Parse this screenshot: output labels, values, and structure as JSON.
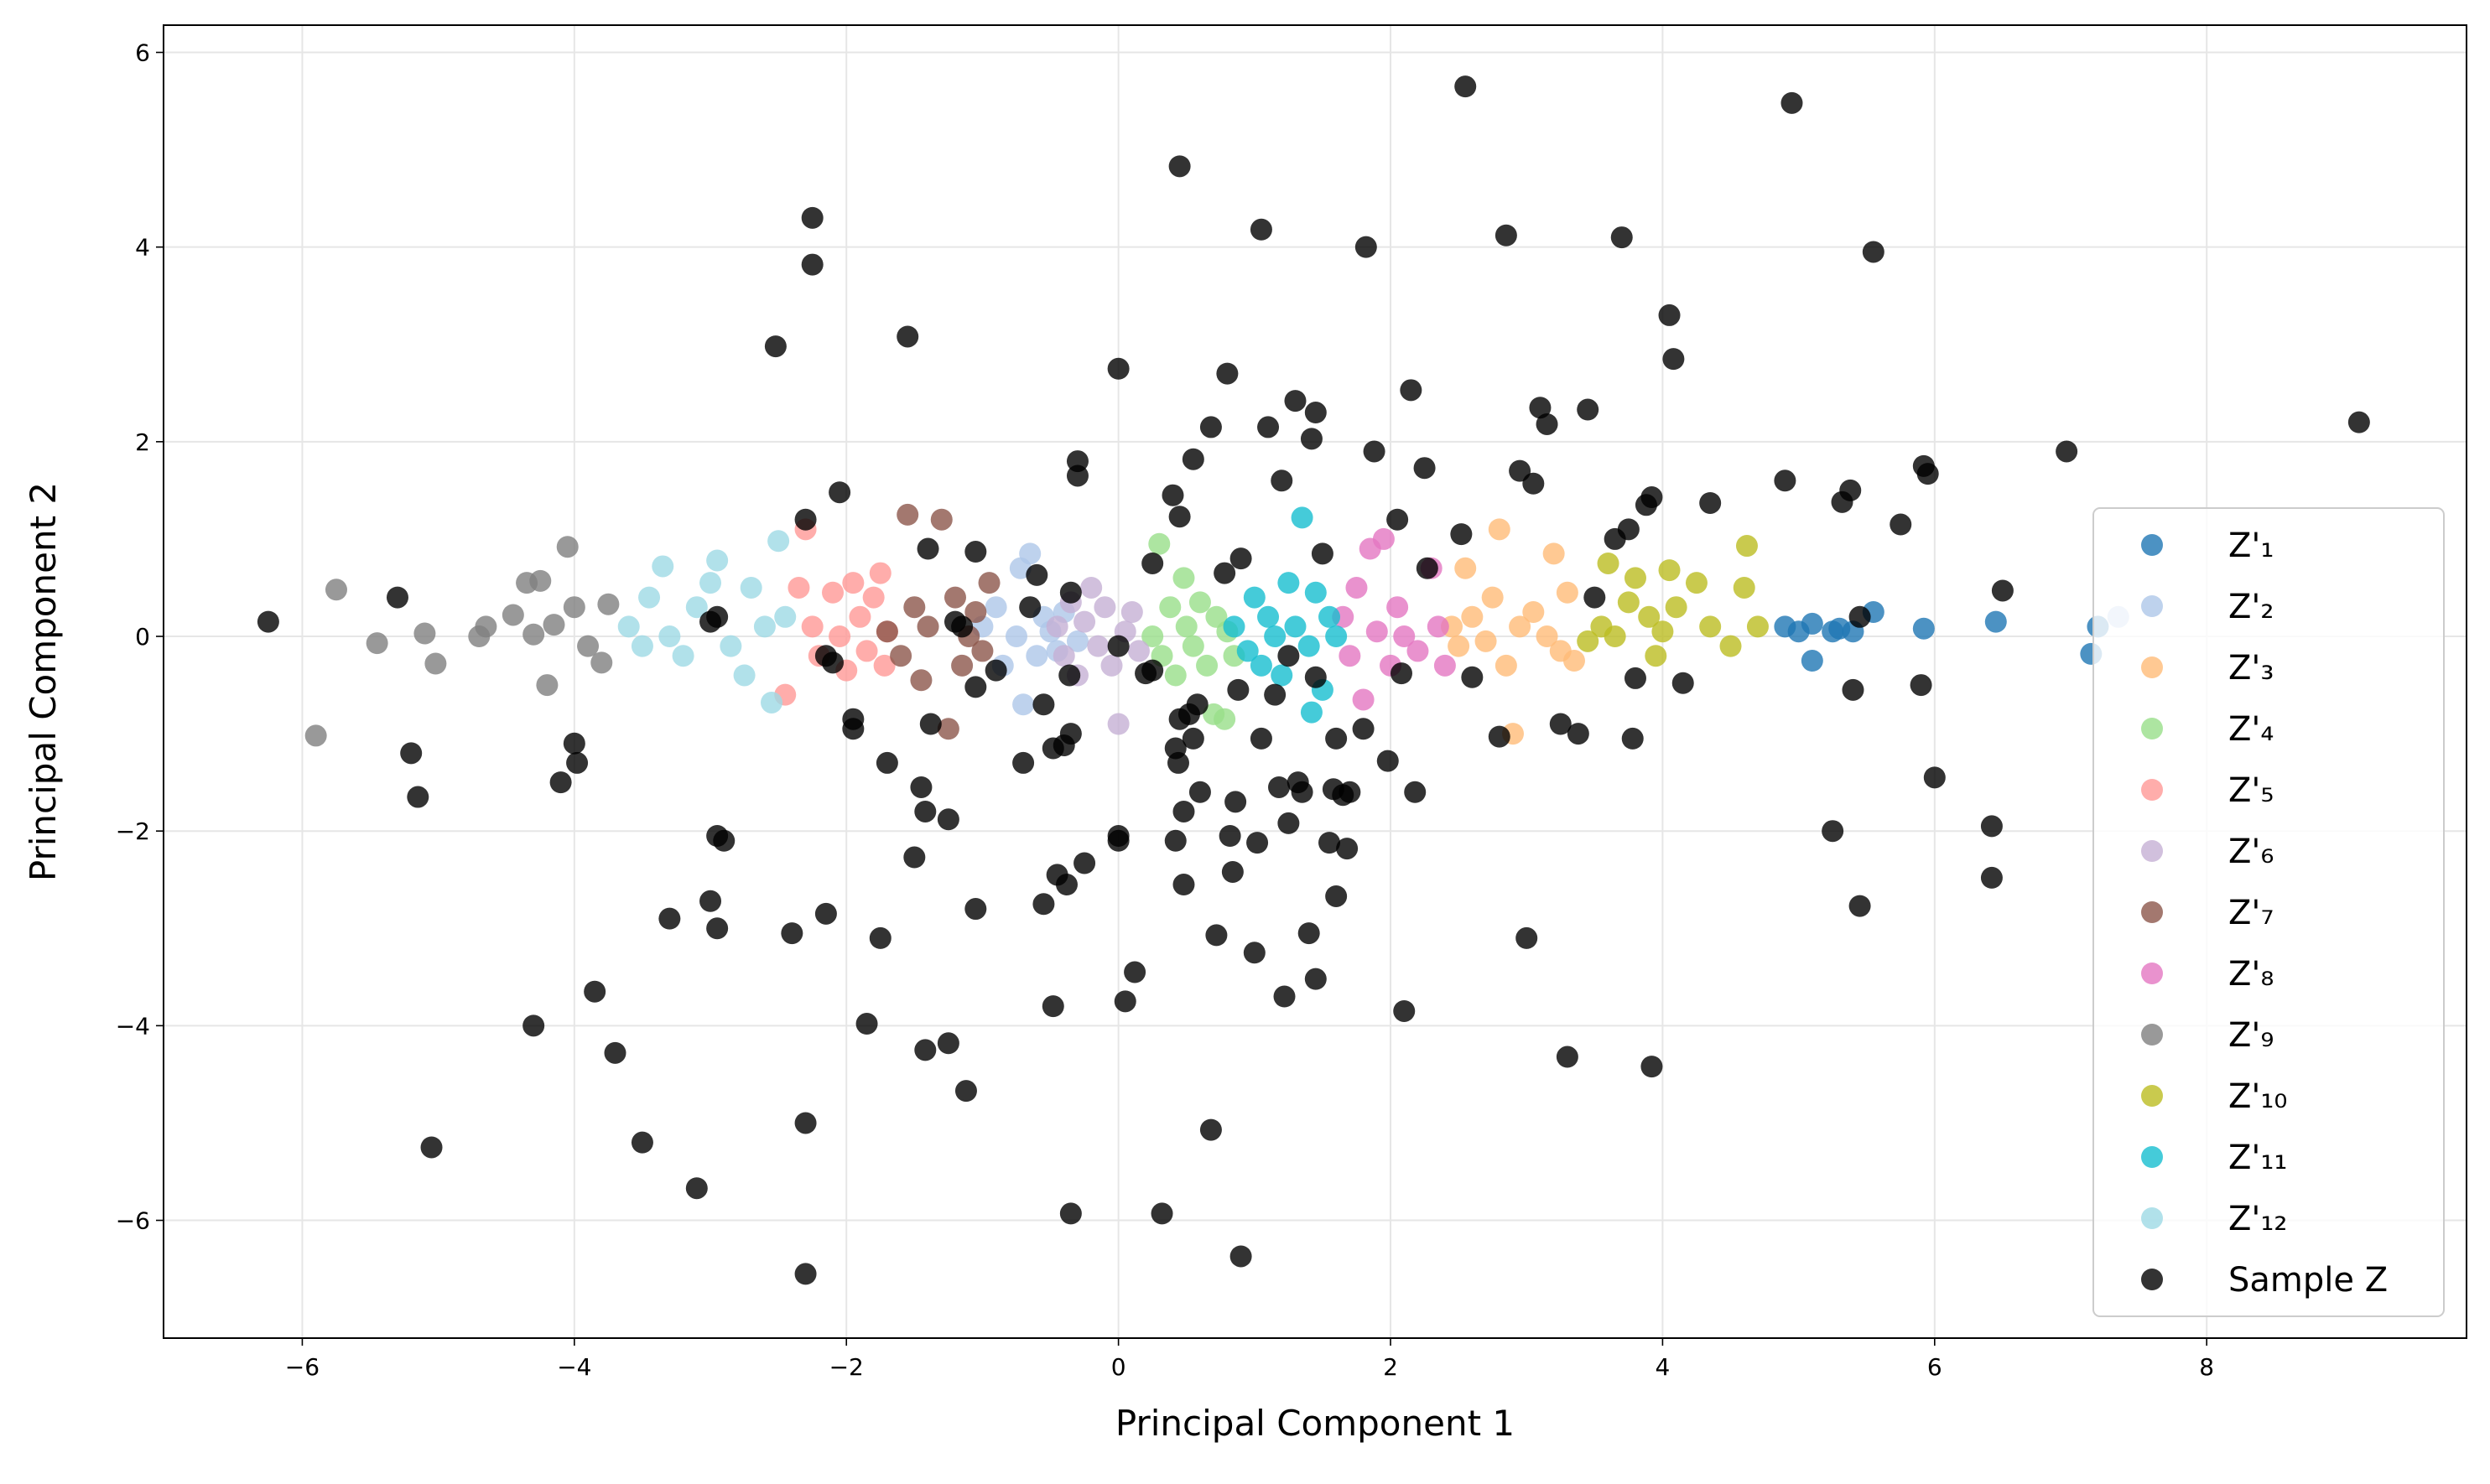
{
  "chart_data": {
    "type": "scatter",
    "xlabel": "Principal Component 1",
    "ylabel": "Principal Component 2",
    "xlim": [
      -7.02,
      9.91
    ],
    "ylim": [
      -7.21,
      6.28
    ],
    "xticks": [
      {
        "value": -6,
        "label": "−6"
      },
      {
        "value": -4,
        "label": "−4"
      },
      {
        "value": -2,
        "label": "−2"
      },
      0,
      2,
      4,
      6,
      8
    ],
    "yticks": [
      {
        "value": -6,
        "label": "−6"
      },
      {
        "value": -4,
        "label": "−4"
      },
      {
        "value": -2,
        "label": "−2"
      },
      0,
      2,
      4,
      6
    ],
    "grid": true,
    "legend": "lower right",
    "series": [
      {
        "name": "Z'₁",
        "color": "#1f77b4",
        "x": [
          4.9,
          5.0,
          5.1,
          5.1,
          5.25,
          5.3,
          5.4,
          5.55,
          5.92,
          6.45,
          7.15,
          7.2
        ],
        "values": [
          0.1,
          0.05,
          0.13,
          -0.25,
          0.05,
          0.08,
          0.05,
          0.25,
          0.08,
          0.15,
          -0.18,
          0.1
        ]
      },
      {
        "name": "Z'₂",
        "color": "#aec7e8",
        "x": [
          -1.0,
          -0.9,
          -0.85,
          -0.75,
          -0.72,
          -0.7,
          -0.65,
          -0.6,
          -0.55,
          -0.5,
          -0.45,
          -0.4,
          -0.3,
          7.35
        ],
        "values": [
          0.1,
          0.3,
          -0.3,
          0.0,
          0.7,
          -0.7,
          0.85,
          -0.2,
          0.2,
          0.05,
          -0.15,
          0.25,
          -0.05,
          0.2
        ]
      },
      {
        "name": "Z'₃",
        "color": "#ffbb78",
        "x": [
          2.45,
          2.5,
          2.55,
          2.6,
          2.7,
          2.75,
          2.8,
          2.85,
          2.9,
          2.95,
          3.05,
          3.15,
          3.2,
          3.25,
          3.3,
          3.35
        ],
        "values": [
          0.1,
          -0.1,
          0.7,
          0.2,
          -0.05,
          0.4,
          1.1,
          -0.3,
          -1.0,
          0.1,
          0.25,
          0.0,
          0.85,
          -0.15,
          0.45,
          -0.25
        ]
      },
      {
        "name": "Z'₄",
        "color": "#98df8a",
        "x": [
          0.25,
          0.3,
          0.32,
          0.38,
          0.42,
          0.48,
          0.5,
          0.55,
          0.6,
          0.65,
          0.7,
          0.72,
          0.78,
          0.8,
          0.85
        ],
        "values": [
          0.0,
          0.95,
          -0.2,
          0.3,
          -0.4,
          0.6,
          0.1,
          -0.1,
          0.35,
          -0.3,
          -0.8,
          0.2,
          -0.85,
          0.05,
          -0.2
        ]
      },
      {
        "name": "Z'₅",
        "color": "#ff9896",
        "x": [
          -2.45,
          -2.35,
          -2.3,
          -2.25,
          -2.2,
          -2.1,
          -2.05,
          -2.0,
          -1.95,
          -1.9,
          -1.85,
          -1.8,
          -1.75,
          -1.72,
          -1.7
        ],
        "values": [
          -0.6,
          0.5,
          1.1,
          0.1,
          -0.2,
          0.45,
          0.0,
          -0.35,
          0.55,
          0.2,
          -0.15,
          0.4,
          0.65,
          -0.3,
          0.05
        ]
      },
      {
        "name": "Z'₆",
        "color": "#c5b0d5",
        "x": [
          -0.45,
          -0.4,
          -0.35,
          -0.3,
          -0.25,
          -0.2,
          -0.15,
          -0.1,
          -0.05,
          0,
          0.05,
          0.1,
          0.15
        ],
        "values": [
          0.1,
          -0.2,
          0.35,
          -0.4,
          0.15,
          0.5,
          -0.1,
          0.3,
          -0.3,
          -0.9,
          0.05,
          0.25,
          -0.15
        ]
      },
      {
        "name": "Z'₇",
        "color": "#8c564b",
        "x": [
          -1.7,
          -1.6,
          -1.55,
          -1.5,
          -1.45,
          -1.4,
          -1.3,
          -1.25,
          -1.2,
          -1.15,
          -1.1,
          -1.05,
          -1.0,
          -0.95
        ],
        "values": [
          0.05,
          -0.2,
          1.25,
          0.3,
          -0.45,
          0.1,
          1.2,
          -0.95,
          0.4,
          -0.3,
          0.0,
          0.25,
          -0.15,
          0.55
        ]
      },
      {
        "name": "Z'₈",
        "color": "#e377c2",
        "x": [
          1.65,
          1.7,
          1.75,
          1.8,
          1.85,
          1.9,
          1.95,
          2.0,
          2.05,
          2.1,
          2.2,
          2.3,
          2.35,
          2.4
        ],
        "values": [
          0.2,
          -0.2,
          0.5,
          -0.65,
          0.9,
          0.05,
          1.0,
          -0.3,
          0.3,
          0.0,
          -0.15,
          0.7,
          0.1,
          -0.3
        ]
      },
      {
        "name": "Z'₉",
        "color": "#7f7f7f",
        "x": [
          -5.9,
          -5.75,
          -5.45,
          -5.1,
          -5.02,
          -4.7,
          -4.65,
          -4.45,
          -4.35,
          -4.3,
          -4.25,
          -4.2,
          -4.15,
          -4.05,
          -4.0,
          -3.9,
          -3.8,
          -3.75
        ],
        "values": [
          -1.02,
          0.48,
          -0.07,
          0.03,
          -0.28,
          0.0,
          0.1,
          0.22,
          0.55,
          0.02,
          0.57,
          -0.5,
          0.12,
          0.92,
          0.3,
          -0.1,
          -0.27,
          0.33
        ]
      },
      {
        "name": "Z'₁₀",
        "color": "#bcbd22",
        "x": [
          3.45,
          3.55,
          3.6,
          3.65,
          3.75,
          3.8,
          3.9,
          3.95,
          4.0,
          4.05,
          4.1,
          4.25,
          4.35,
          4.5,
          4.6,
          4.62,
          4.7
        ],
        "values": [
          -0.05,
          0.1,
          0.75,
          0.0,
          0.35,
          0.6,
          0.2,
          -0.2,
          0.05,
          0.68,
          0.3,
          0.55,
          0.1,
          -0.1,
          0.5,
          0.93,
          0.1
        ]
      },
      {
        "name": "Z'₁₁",
        "color": "#17becf",
        "x": [
          0.85,
          0.95,
          1.0,
          1.05,
          1.1,
          1.15,
          1.2,
          1.25,
          1.3,
          1.35,
          1.4,
          1.42,
          1.45,
          1.5,
          1.55,
          1.6
        ],
        "values": [
          0.1,
          -0.15,
          0.4,
          -0.3,
          0.2,
          0.0,
          -0.4,
          0.55,
          0.1,
          1.22,
          -0.1,
          -0.78,
          0.45,
          -0.55,
          0.2,
          0.0
        ]
      },
      {
        "name": "Z'₁₂",
        "color": "#9edae5",
        "x": [
          -3.6,
          -3.5,
          -3.45,
          -3.35,
          -3.3,
          -3.2,
          -3.1,
          -3.0,
          -2.95,
          -2.85,
          -2.75,
          -2.7,
          -2.6,
          -2.55,
          -2.5,
          -2.45
        ],
        "values": [
          0.1,
          -0.1,
          0.4,
          0.72,
          0.0,
          -0.2,
          0.3,
          0.55,
          0.78,
          -0.1,
          -0.4,
          0.5,
          0.1,
          -0.68,
          0.98,
          0.2
        ]
      },
      {
        "name": "Sample Z",
        "color": "#000000",
        "x": [
          -6.25,
          -5.3,
          -5.2,
          -5.15,
          -5.05,
          -4.3,
          -4.1,
          -4.0,
          -3.98,
          -3.85,
          -3.7,
          -3.5,
          -3.3,
          -3.1,
          -3.0,
          -2.95,
          -2.95,
          -2.9,
          -3.0,
          -2.95,
          -2.52,
          -2.4,
          -2.3,
          -2.3,
          -2.3,
          -2.25,
          -2.25,
          -2.15,
          -2.15,
          -2.1,
          -2.05,
          -1.95,
          -1.95,
          -1.85,
          -1.75,
          -1.7,
          -1.55,
          -1.5,
          -1.45,
          -1.42,
          -1.42,
          -1.4,
          -1.38,
          -1.25,
          -1.25,
          -1.2,
          -1.15,
          -1.12,
          -1.05,
          -1.05,
          -1.05,
          -0.9,
          -0.7,
          -0.65,
          -0.6,
          -0.55,
          -0.55,
          -0.48,
          -0.48,
          -0.45,
          -0.4,
          -0.38,
          -0.36,
          -0.35,
          -0.35,
          -0.35,
          -0.3,
          -0.3,
          -0.25,
          0,
          0,
          0,
          0,
          0.05,
          0.12,
          0.2,
          0.25,
          0.25,
          0.32,
          0.4,
          0.42,
          0.42,
          0.44,
          0.45,
          0.45,
          0.45,
          0.48,
          0.48,
          0.52,
          0.55,
          0.55,
          0.58,
          0.6,
          0.68,
          0.68,
          0.72,
          0.78,
          0.8,
          0.82,
          0.84,
          0.86,
          0.88,
          0.9,
          0.9,
          1.0,
          1.02,
          1.05,
          1.05,
          1.1,
          1.15,
          1.18,
          1.2,
          1.22,
          1.25,
          1.25,
          1.3,
          1.32,
          1.35,
          1.4,
          1.42,
          1.45,
          1.45,
          1.45,
          1.5,
          1.55,
          1.58,
          1.6,
          1.6,
          1.65,
          1.68,
          1.7,
          1.8,
          1.82,
          1.88,
          1.98,
          2.05,
          2.08,
          2.1,
          2.15,
          2.18,
          2.25,
          2.27,
          2.52,
          2.55,
          2.6,
          2.8,
          2.85,
          2.95,
          3.0,
          3.05,
          3.1,
          3.15,
          3.25,
          3.3,
          3.38,
          3.45,
          3.5,
          3.65,
          3.7,
          3.75,
          3.78,
          3.8,
          3.88,
          3.92,
          3.92,
          4.05,
          4.08,
          4.15,
          4.35,
          4.9,
          4.95,
          5.32,
          5.38,
          5.25,
          5.4,
          5.45,
          5.45,
          5.55,
          5.75,
          5.9,
          5.92,
          5.95,
          6.0,
          6.42,
          6.42,
          6.5,
          6.97,
          9.12
        ],
        "values": [
          0.15,
          0.4,
          -1.2,
          -1.65,
          -5.25,
          -4.0,
          -1.5,
          -1.1,
          -1.3,
          -3.65,
          -4.28,
          -5.2,
          -2.9,
          -5.67,
          -2.72,
          -3.0,
          -2.05,
          -2.1,
          0.15,
          0.2,
          2.98,
          -3.05,
          1.2,
          -5.0,
          -6.55,
          4.3,
          3.82,
          -2.85,
          -0.2,
          -0.27,
          1.48,
          -0.85,
          -0.95,
          -3.98,
          -3.1,
          -1.3,
          3.08,
          -2.27,
          -1.55,
          -1.8,
          -4.25,
          0.9,
          -0.9,
          -1.88,
          -4.18,
          0.15,
          0.1,
          -4.67,
          0.87,
          -2.8,
          -0.52,
          -0.35,
          -1.3,
          0.3,
          0.63,
          -0.7,
          -2.75,
          -3.8,
          -1.15,
          -2.45,
          -1.12,
          -2.55,
          -0.4,
          -5.93,
          0.45,
          -1.0,
          1.65,
          1.8,
          -2.33,
          2.75,
          -2.05,
          -2.1,
          -0.1,
          -3.75,
          -3.45,
          -0.38,
          -0.35,
          0.75,
          -5.93,
          1.45,
          -1.15,
          -2.1,
          -1.3,
          4.83,
          1.23,
          -0.85,
          -1.8,
          -2.55,
          -0.8,
          1.82,
          -1.05,
          -0.7,
          -1.6,
          2.15,
          -5.07,
          -3.07,
          0.65,
          2.7,
          -2.05,
          -2.42,
          -1.7,
          -0.55,
          -6.37,
          0.8,
          -3.25,
          -2.12,
          4.18,
          -1.05,
          2.15,
          -0.6,
          -1.55,
          1.6,
          -3.7,
          -0.2,
          -1.92,
          2.42,
          -1.5,
          -1.6,
          -3.05,
          2.03,
          2.3,
          -0.42,
          -3.52,
          0.85,
          -2.12,
          -1.57,
          -2.67,
          -1.05,
          -1.63,
          -2.18,
          -1.6,
          -0.95,
          4.0,
          1.9,
          -1.28,
          1.2,
          -0.38,
          -3.85,
          2.53,
          -1.6,
          1.73,
          0.7,
          1.05,
          5.65,
          -0.42,
          -1.03,
          4.12,
          1.7,
          -3.1,
          1.57,
          2.35,
          2.18,
          -0.9,
          -4.32,
          -1.0,
          2.33,
          0.4,
          1.0,
          4.1,
          1.1,
          -1.05,
          -0.43,
          1.35,
          -4.42,
          1.43,
          3.3,
          2.85,
          -0.48,
          1.37,
          1.6,
          5.48,
          1.38,
          1.5,
          -2.0,
          -0.55,
          0.2,
          -2.77,
          3.95,
          1.15,
          -0.5,
          1.75,
          1.67,
          -1.45,
          -1.95,
          -2.48,
          0.47,
          1.9,
          2.2
        ]
      }
    ]
  }
}
